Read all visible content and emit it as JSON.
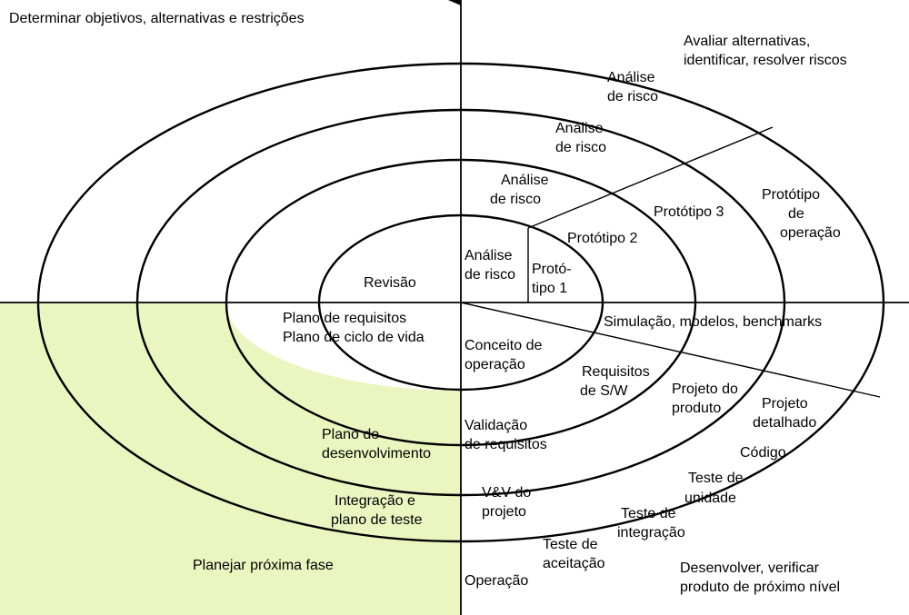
{
  "quadrants": {
    "top_left": "Determinar objetivos, alternativas e restrições",
    "top_right": [
      "Avaliar alternativas,",
      "identificar, resolver riscos"
    ],
    "bottom_left": "Planejar próxima fase",
    "bottom_right": [
      "Desenvolver, verificar",
      "produto de próximo nível"
    ]
  },
  "risk_analysis": {
    "r1": [
      "Análise",
      "de risco"
    ],
    "r2": [
      "Análise",
      "de risco"
    ],
    "r3": [
      "Análise",
      "de risco"
    ],
    "r4": [
      "Análise",
      "de risco"
    ]
  },
  "prototypes": {
    "p1": [
      "Protó-",
      "tipo 1"
    ],
    "p2": "Protótipo 2",
    "p3": "Protótipo 3",
    "operational": [
      "Protótipo",
      "de",
      "operação"
    ]
  },
  "review": "Revisão",
  "planning": {
    "requirements_plan": [
      "Plano de requisitos",
      "Plano de ciclo de vida"
    ],
    "development_plan": [
      "Plano de",
      "desenvolvimento"
    ],
    "integration_plan": [
      "Integração e",
      "plano de teste"
    ]
  },
  "simulation": "Simulação, modelos, benchmarks",
  "development": {
    "concept": [
      "Conceito de",
      "operação"
    ],
    "sw_requirements": [
      "Requisitos",
      "de S/W"
    ],
    "requirements_validation": [
      "Validação",
      "de requisitos"
    ],
    "product_design": [
      "Projeto do",
      "produto"
    ],
    "detailed_design": [
      "Projeto",
      "detalhado"
    ],
    "code": "Código",
    "unit_test": [
      "Teste de",
      "unidade"
    ],
    "design_vv": [
      "V&V do",
      "projeto"
    ],
    "integration_test": [
      "Teste de",
      "integração"
    ],
    "acceptance_test": [
      "Teste de",
      "aceitação"
    ],
    "operation": "Operação"
  }
}
